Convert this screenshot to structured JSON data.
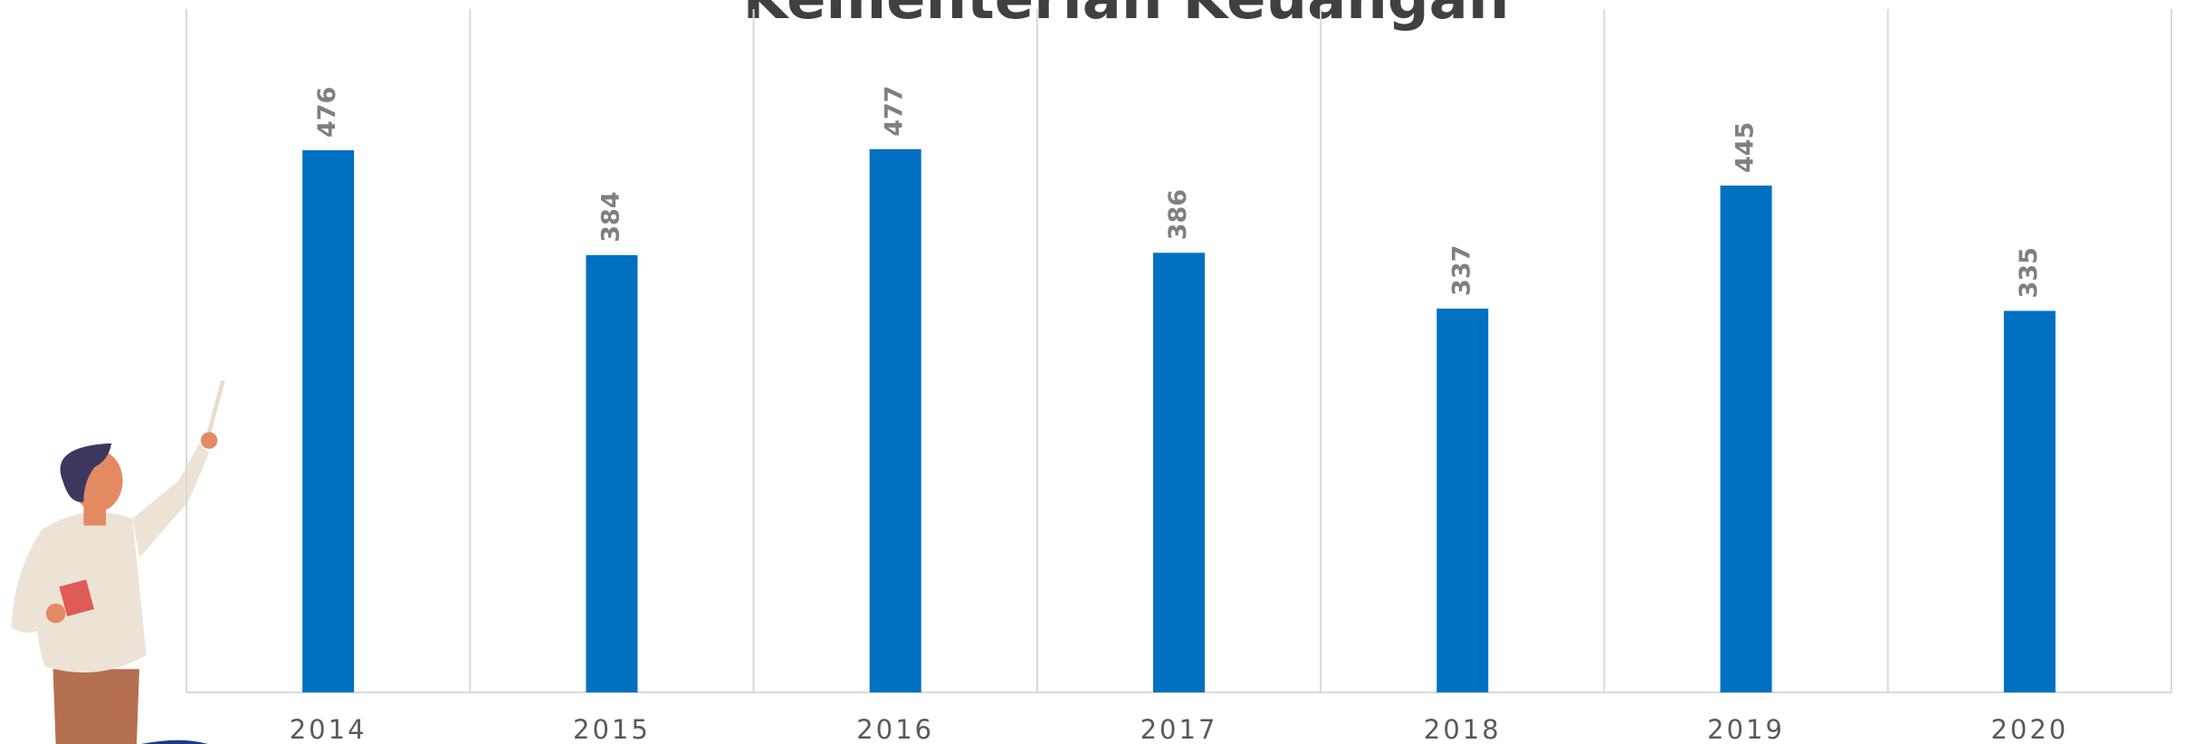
{
  "chart_data": {
    "type": "bar",
    "title": "Kementerian Keuangan",
    "categories": [
      "2014",
      "2015",
      "2016",
      "2017",
      "2018",
      "2019",
      "2020"
    ],
    "values": [
      476,
      384,
      477,
      386,
      337,
      445,
      335
    ],
    "color": "#0070c0",
    "ylim": [
      0,
      600
    ],
    "grid": true
  }
}
